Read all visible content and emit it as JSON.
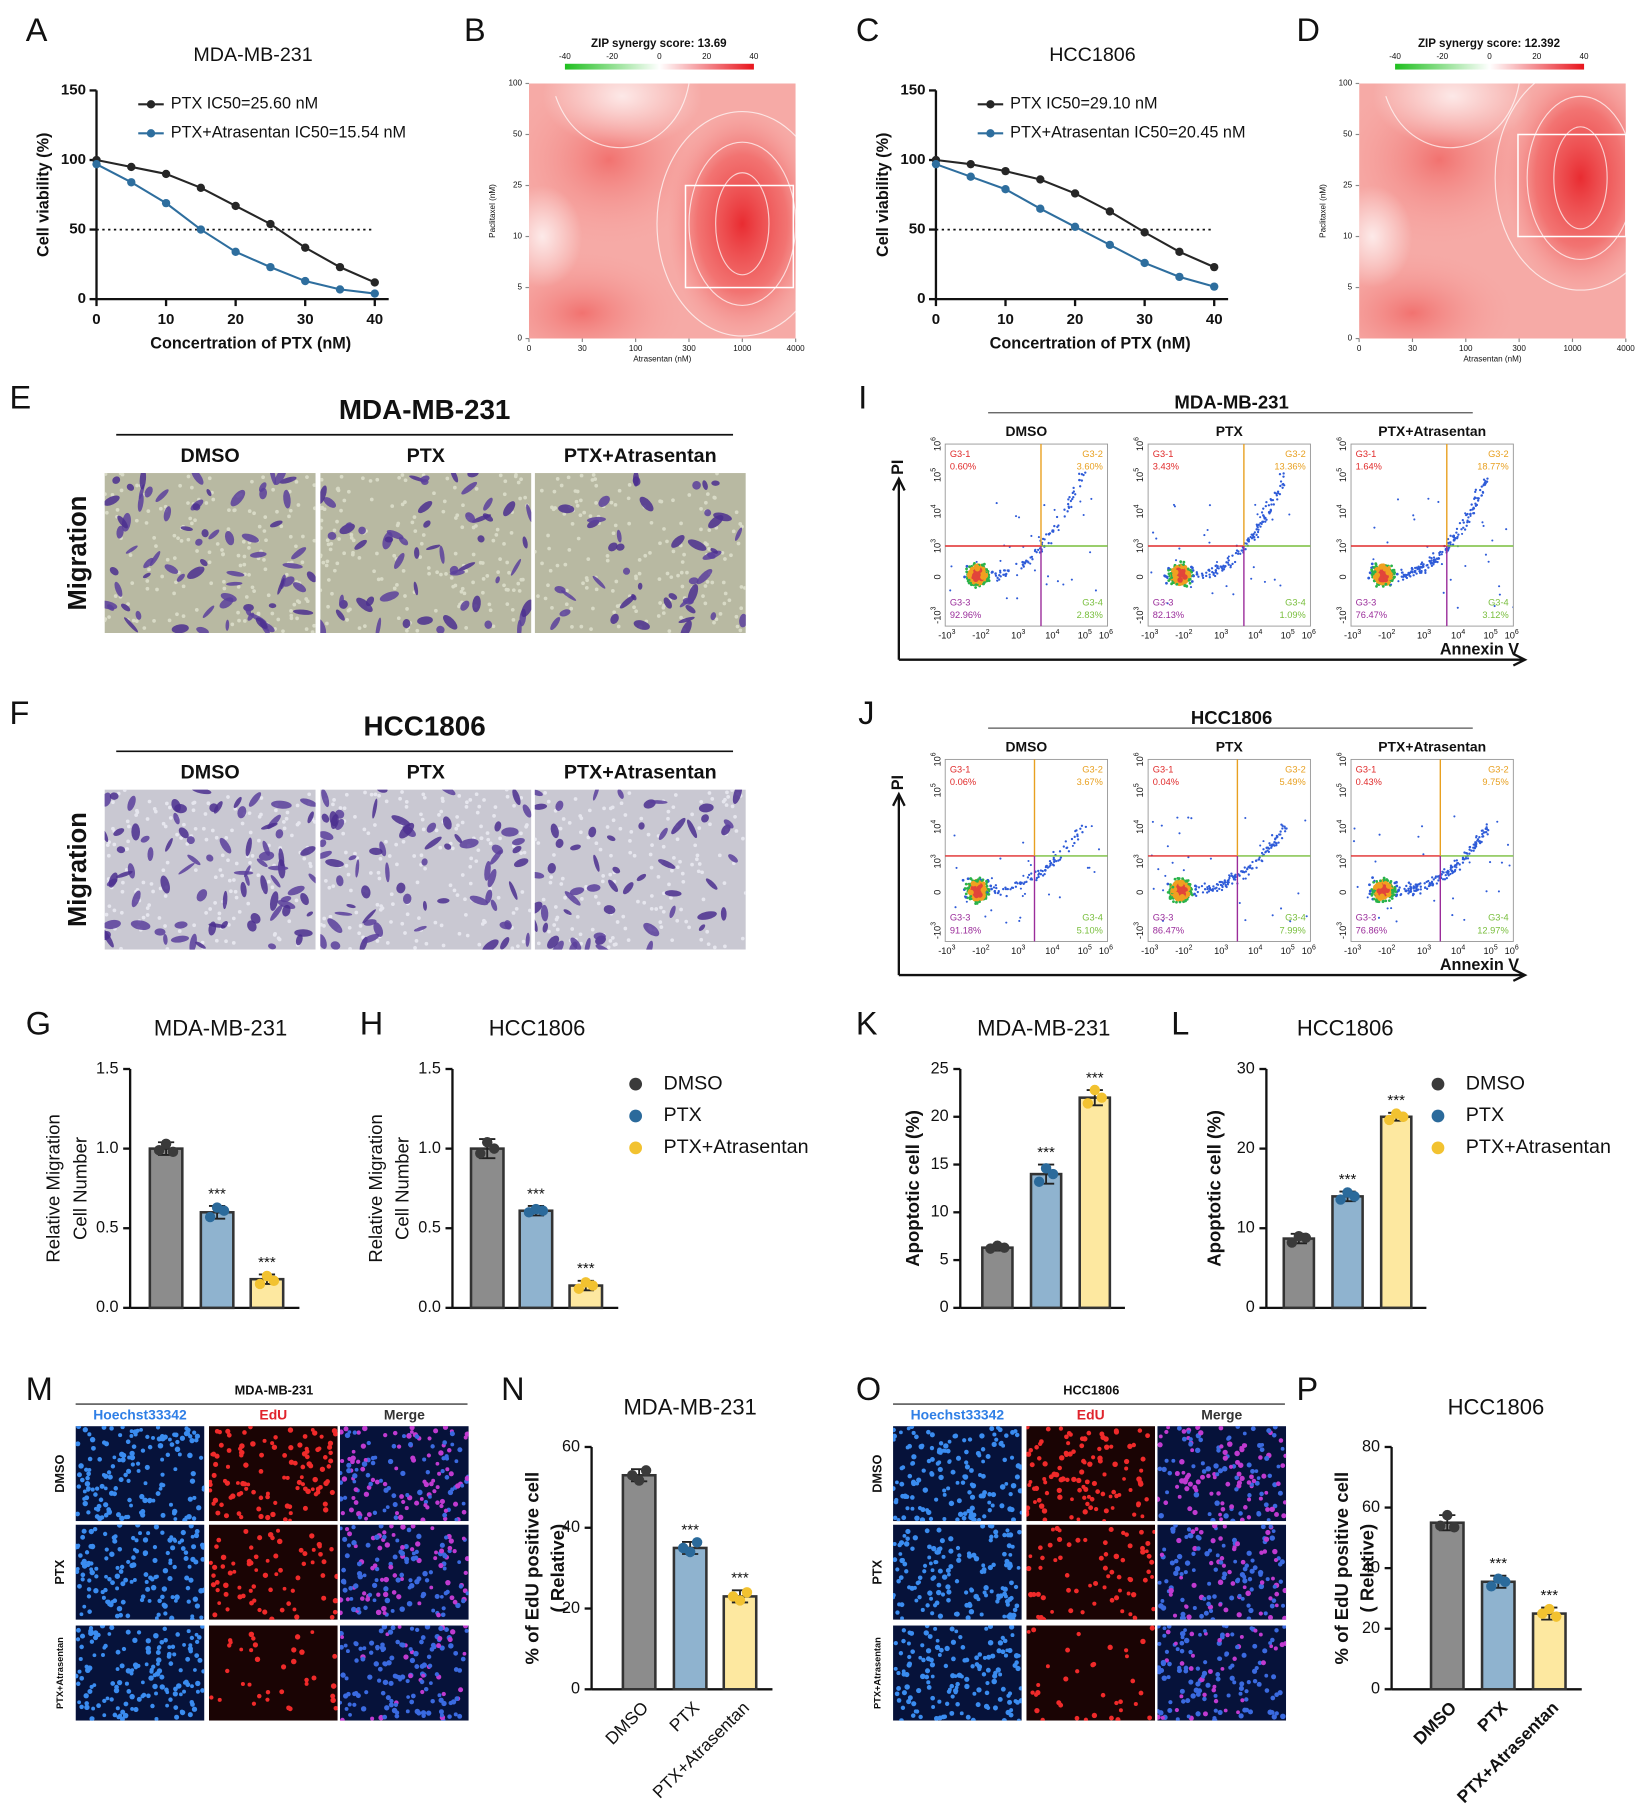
{
  "panel_labels": [
    "A",
    "B",
    "C",
    "D",
    "E",
    "F",
    "G",
    "H",
    "I",
    "J",
    "K",
    "L",
    "M",
    "N",
    "O",
    "P"
  ],
  "chart_data": [
    {
      "type": "line",
      "title": "MDA-MB-231",
      "x": [
        0,
        5,
        10,
        15,
        20,
        25,
        30,
        35,
        40
      ],
      "series": [
        {
          "name": "PTX IC50=25.60 nM",
          "color": "#262626",
          "values": [
            100,
            95,
            90,
            80,
            67,
            54,
            37,
            23,
            12
          ]
        },
        {
          "name": "PTX+Atrasentan IC50=15.54 nM",
          "color": "#2e6e9e",
          "values": [
            97,
            84,
            69,
            50,
            34,
            23,
            13,
            7,
            4
          ]
        }
      ],
      "xlim": [
        0,
        42
      ],
      "ylim": [
        0,
        150
      ],
      "xticks": [
        0,
        10,
        20,
        30,
        40
      ],
      "yticks": [
        0,
        50,
        100,
        150
      ],
      "xlabel": "Concertration of PTX (nM)",
      "ylabel": "Cell viability (%)",
      "reference_line": 50
    },
    {
      "type": "line",
      "title": "HCC1806",
      "x": [
        0,
        5,
        10,
        15,
        20,
        25,
        30,
        35,
        40
      ],
      "series": [
        {
          "name": "PTX IC50=29.10 nM",
          "color": "#262626",
          "values": [
            100,
            97,
            92,
            86,
            76,
            63,
            48,
            34,
            23
          ]
        },
        {
          "name": "PTX+Atrasentan IC50=20.45 nM",
          "color": "#2e6e9e",
          "values": [
            97,
            88,
            79,
            65,
            52,
            39,
            26,
            16,
            9
          ]
        }
      ],
      "xlim": [
        0,
        42
      ],
      "ylim": [
        0,
        150
      ],
      "xticks": [
        0,
        10,
        20,
        30,
        40
      ],
      "yticks": [
        0,
        50,
        100,
        150
      ],
      "xlabel": "Concertration of PTX (nM)",
      "ylabel": "Cell viability (%)",
      "reference_line": 50
    },
    {
      "type": "bar",
      "title": "MDA-MB-231",
      "categories": [
        null,
        null,
        null
      ],
      "values": [
        1.0,
        0.6,
        0.18
      ],
      "errors": [
        0.04,
        0.04,
        0.03
      ],
      "points": [
        [
          0.99,
          1.03,
          0.98
        ],
        [
          0.57,
          0.63,
          0.61
        ],
        [
          0.15,
          0.2,
          0.17
        ]
      ],
      "significance": [
        null,
        "***",
        "***"
      ],
      "colors": [
        "#8c8c8c",
        "#8fb3cf",
        "#fde8a0"
      ],
      "point_colors": [
        "#3a3a3a",
        "#2b6a9b",
        "#f2c230"
      ],
      "ylim": [
        0,
        1.5
      ],
      "yticks": [
        {
          "value": 0,
          "label": "0.0"
        },
        {
          "value": 0.5,
          "label": "0.5"
        },
        {
          "value": 1,
          "label": "1.0"
        },
        {
          "value": 1.5,
          "label": "1.5"
        }
      ],
      "ylabel": [
        "Relative Migration",
        "Cell Number"
      ]
    },
    {
      "type": "bar",
      "title": "HCC1806",
      "categories": [
        null,
        null,
        null
      ],
      "values": [
        1.0,
        0.61,
        0.14
      ],
      "errors": [
        0.06,
        0.03,
        0.03
      ],
      "points": [
        [
          0.97,
          1.04,
          1.0
        ],
        [
          0.6,
          0.62,
          0.61
        ],
        [
          0.12,
          0.16,
          0.14
        ]
      ],
      "significance": [
        null,
        "***",
        "***"
      ],
      "colors": [
        "#8c8c8c",
        "#8fb3cf",
        "#fde8a0"
      ],
      "point_colors": [
        "#3a3a3a",
        "#2b6a9b",
        "#f2c230"
      ],
      "ylim": [
        0,
        1.5
      ],
      "yticks": [
        {
          "value": 0,
          "label": "0.0"
        },
        {
          "value": 0.5,
          "label": "0.5"
        },
        {
          "value": 1,
          "label": "1.0"
        },
        {
          "value": 1.5,
          "label": "1.5"
        }
      ],
      "ylabel": [
        "Relative Migration",
        "Cell Number"
      ],
      "legend": [
        "DMSO",
        "PTX",
        "PTX+Atrasentan"
      ]
    },
    {
      "type": "bar",
      "title": "MDA-MB-231",
      "categories": [
        null,
        null,
        null
      ],
      "values": [
        6.3,
        14.0,
        22.0
      ],
      "errors": [
        0.3,
        1.0,
        0.8
      ],
      "points": [
        [
          6.2,
          6.5,
          6.3
        ],
        [
          13.2,
          14.6,
          14.0
        ],
        [
          21.4,
          22.8,
          22.0
        ]
      ],
      "significance": [
        null,
        "***",
        "***"
      ],
      "colors": [
        "#8c8c8c",
        "#8fb3cf",
        "#fde8a0"
      ],
      "point_colors": [
        "#3a3a3a",
        "#2b6a9b",
        "#f2c230"
      ],
      "ylim": [
        0,
        25
      ],
      "yticks": [
        0,
        5,
        10,
        15,
        20,
        25
      ],
      "ylabel": [
        "Apoptotic cell (%)"
      ]
    },
    {
      "type": "bar",
      "title": "HCC1806",
      "categories": [
        null,
        null,
        null
      ],
      "values": [
        8.7,
        14.0,
        24.0
      ],
      "errors": [
        0.6,
        0.6,
        0.5
      ],
      "points": [
        [
          8.2,
          9.0,
          8.8
        ],
        [
          13.6,
          14.5,
          14.0
        ],
        [
          23.6,
          24.4,
          24.0
        ]
      ],
      "significance": [
        null,
        "***",
        "***"
      ],
      "colors": [
        "#8c8c8c",
        "#8fb3cf",
        "#fde8a0"
      ],
      "point_colors": [
        "#3a3a3a",
        "#2b6a9b",
        "#f2c230"
      ],
      "ylim": [
        0,
        30
      ],
      "yticks": [
        0,
        10,
        20,
        30
      ],
      "ylabel": [
        "Apoptotic cell (%)"
      ],
      "legend": [
        "DMSO",
        "PTX",
        "PTX+Atrasentan"
      ]
    },
    {
      "type": "bar",
      "title": "MDA-MB-231",
      "categories": [
        "DMSO",
        "PTX",
        "PTX+Atrasentan"
      ],
      "values": [
        53,
        35,
        23
      ],
      "errors": [
        1.5,
        1.5,
        1.5
      ],
      "points": [
        [
          53,
          51.7,
          54.2
        ],
        [
          35,
          34,
          36.4
        ],
        [
          23,
          22,
          24
        ]
      ],
      "significance": [
        null,
        "***",
        "***"
      ],
      "colors": [
        "#8c8c8c",
        "#8fb3cf",
        "#fde8a0"
      ],
      "point_colors": [
        "#3a3a3a",
        "#2b6a9b",
        "#f2c230"
      ],
      "ylim": [
        0,
        60
      ],
      "yticks": [
        0,
        20,
        40,
        60
      ],
      "ylabel": [
        "% of EdU positive cell",
        "( Relative)"
      ]
    },
    {
      "type": "bar",
      "title": "HCC1806",
      "categories": [
        "DMSO",
        "PTX",
        "PTX+Atrasentan"
      ],
      "values": [
        55,
        35.5,
        25
      ],
      "errors": [
        2.5,
        2,
        2
      ],
      "points": [
        [
          54,
          57.5,
          53.5
        ],
        [
          34,
          36.5,
          35.5
        ],
        [
          25,
          26.5,
          24
        ]
      ],
      "significance": [
        null,
        "***",
        "***"
      ],
      "colors": [
        "#8c8c8c",
        "#8fb3cf",
        "#fde8a0"
      ],
      "point_colors": [
        "#3a3a3a",
        "#2b6a9b",
        "#f2c230"
      ],
      "ylim": [
        0,
        80
      ],
      "yticks": [
        0,
        20,
        40,
        60,
        80
      ],
      "ylabel": [
        "% of EdU positive cell",
        "( Relative)"
      ]
    }
  ],
  "synergy": [
    {
      "title": "ZIP synergy score: 13.69",
      "colorbar_ticks": [
        -40,
        -20,
        0,
        20,
        40
      ],
      "y_levels": [
        0,
        5,
        10,
        25,
        50,
        100
      ],
      "x_levels": [
        0,
        30,
        100,
        300,
        1000,
        4000
      ],
      "ylabel": "Paclitaxel (nM)",
      "xlabel": "Atrasentan (nM)"
    },
    {
      "title": "ZIP synergy score: 12.392",
      "colorbar_ticks": [
        -40,
        -20,
        0,
        20,
        40
      ],
      "y_levels": [
        0,
        5,
        10,
        25,
        50,
        100
      ],
      "x_levels": [
        0,
        30,
        100,
        300,
        1000,
        4000
      ],
      "ylabel": "Paclitaxel (nM)",
      "xlabel": "Atrasentan (nM)"
    }
  ],
  "migration": [
    {
      "title": "MDA-MB-231",
      "columns": [
        "DMSO",
        "PTX",
        "PTX+Atrasentan"
      ],
      "row_label": "Migration"
    },
    {
      "title": "HCC1806",
      "columns": [
        "DMSO",
        "PTX",
        "PTX+Atrasentan"
      ],
      "row_label": "Migration"
    }
  ],
  "flow": [
    {
      "title": "MDA-MB-231",
      "columns": [
        "DMSO",
        "PTX",
        "PTX+Atrasentan"
      ],
      "gates": [
        "G3-1",
        "G3-2",
        "G3-3",
        "G3-4"
      ],
      "percentages": [
        [
          "0.60%",
          "3.60%",
          "92.96%",
          "2.83%"
        ],
        [
          "3.43%",
          "13.36%",
          "82.13%",
          "1.09%"
        ],
        [
          "1.64%",
          "18.77%",
          "76.47%",
          "3.12%"
        ]
      ],
      "ylabel": "PI",
      "xlabel": "Annexin V",
      "yticks": [
        {
          "base": "10",
          "exp": "6"
        },
        {
          "base": "10",
          "exp": "5"
        },
        {
          "base": "10",
          "exp": "4"
        },
        {
          "base": "10",
          "exp": "3"
        },
        {
          "base": "0"
        },
        {
          "base": "-10",
          "exp": "3"
        }
      ],
      "xticks": [
        {
          "base": "-10",
          "exp": "3"
        },
        {
          "base": "-10",
          "exp": "2"
        },
        {
          "base": "10",
          "exp": "3"
        },
        {
          "base": "10",
          "exp": "4"
        },
        {
          "base": "10",
          "exp": "5"
        },
        {
          "base": "10",
          "exp": "6"
        }
      ]
    },
    {
      "title": "HCC1806",
      "columns": [
        "DMSO",
        "PTX",
        "PTX+Atrasentan"
      ],
      "gates": [
        "G3-1",
        "G3-2",
        "G3-3",
        "G3-4"
      ],
      "percentages": [
        [
          "0.06%",
          "3.67%",
          "91.18%",
          "5.10%"
        ],
        [
          "0.04%",
          "5.49%",
          "86.47%",
          "7.99%"
        ],
        [
          "0.43%",
          "9.75%",
          "76.86%",
          "12.97%"
        ]
      ],
      "ylabel": "PI",
      "xlabel": "Annexin V",
      "yticks": [
        {
          "base": "10",
          "exp": "6"
        },
        {
          "base": "10",
          "exp": "5"
        },
        {
          "base": "10",
          "exp": "4"
        },
        {
          "base": "10",
          "exp": "3"
        },
        {
          "base": "0"
        },
        {
          "base": "-10",
          "exp": "3"
        }
      ],
      "xticks": [
        {
          "base": "-10",
          "exp": "3"
        },
        {
          "base": "-10",
          "exp": "2"
        },
        {
          "base": "10",
          "exp": "3"
        },
        {
          "base": "10",
          "exp": "4"
        },
        {
          "base": "10",
          "exp": "5"
        },
        {
          "base": "10",
          "exp": "6"
        }
      ]
    }
  ],
  "edu": [
    {
      "title": "MDA-MB-231",
      "columns": [
        "Hoechst33342",
        "EdU",
        "Merge"
      ],
      "rows": [
        "DMSO",
        "PTX",
        "PTX+Atrasentan"
      ]
    },
    {
      "title": "HCC1806",
      "columns": [
        "Hoechst33342",
        "EdU",
        "Merge"
      ],
      "rows": [
        "DMSO",
        "PTX",
        "PTX+Atrasentan"
      ]
    }
  ]
}
